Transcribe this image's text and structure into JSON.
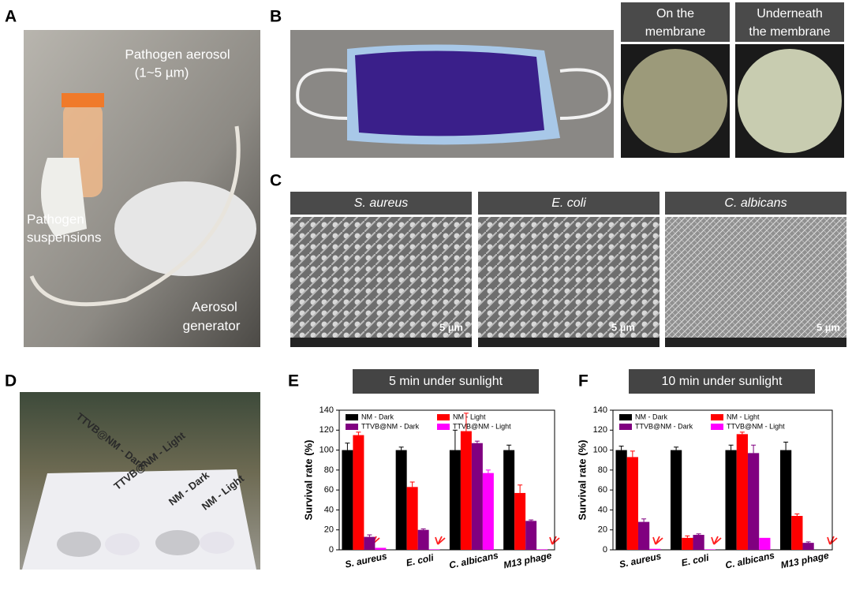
{
  "panels": {
    "a": {
      "letter": "A",
      "aerosol_label": "Pathogen aerosol",
      "size_label": "(1~5 µm)",
      "suspension_label": [
        "Pathogen",
        "suspensions"
      ],
      "generator_label": [
        "Aerosol",
        "generator"
      ]
    },
    "b": {
      "letter": "B",
      "on_label": [
        "On the",
        "membrane"
      ],
      "under_label": [
        "Underneath",
        "the membrane"
      ]
    },
    "c": {
      "letter": "C",
      "headers": [
        "S. aureus",
        "E. coli",
        "C. albicans"
      ],
      "scale_bars": [
        "5 µm",
        "5 µm",
        "5 µm"
      ]
    },
    "d": {
      "letter": "D",
      "card_labels": [
        "TTVB@NM - Dark",
        "TTVB@NM - Light",
        "NM - Dark",
        "NM - Light"
      ]
    },
    "e": {
      "letter": "E"
    },
    "f": {
      "letter": "F"
    }
  },
  "chart_data": [
    {
      "type": "bar",
      "title": "5 min under sunlight",
      "y_label": "Survival rate (%)",
      "categories": [
        "S. aureus",
        "E. coli",
        "C. albicans",
        "M13 phage"
      ],
      "series": [
        {
          "name": "NM - Dark",
          "color": "#000000",
          "values": [
            100,
            100,
            100,
            100
          ],
          "errors": [
            7,
            3,
            20,
            5
          ]
        },
        {
          "name": "NM - Light",
          "color": "#ff0000",
          "values": [
            115,
            63,
            119,
            57
          ],
          "errors": [
            3,
            5,
            18,
            8
          ]
        },
        {
          "name": "TTVB@NM - Dark",
          "color": "#800080",
          "values": [
            13,
            20,
            107,
            29
          ],
          "errors": [
            2,
            1,
            2,
            1
          ]
        },
        {
          "name": "TTVB@NM - Light",
          "color": "#ff00ff",
          "values": [
            2,
            0.5,
            77,
            0.5
          ],
          "errors": [
            0,
            0,
            3,
            0
          ]
        }
      ],
      "ylim": [
        0,
        140
      ],
      "yticks": [
        0,
        20,
        40,
        60,
        80,
        100,
        120,
        140
      ],
      "legend": "top"
    },
    {
      "type": "bar",
      "title": "10 min under sunlight",
      "y_label": "Survival rate (%)",
      "categories": [
        "S. aureus",
        "E. coli",
        "C. albicans",
        "M13 phage"
      ],
      "series": [
        {
          "name": "NM - Dark",
          "color": "#000000",
          "values": [
            100,
            100,
            100,
            100
          ],
          "errors": [
            4,
            3,
            5,
            8
          ]
        },
        {
          "name": "NM - Light",
          "color": "#ff0000",
          "values": [
            93,
            12,
            116,
            34
          ],
          "errors": [
            6,
            2,
            2,
            2
          ]
        },
        {
          "name": "TTVB@NM - Dark",
          "color": "#800080",
          "values": [
            28,
            15,
            97,
            7
          ],
          "errors": [
            3,
            1,
            8,
            1
          ]
        },
        {
          "name": "TTVB@NM - Light",
          "color": "#ff00ff",
          "values": [
            1,
            0.5,
            12,
            0
          ],
          "errors": [
            0,
            0,
            0,
            0
          ]
        }
      ],
      "ylim": [
        0,
        140
      ],
      "yticks": [
        0,
        20,
        40,
        60,
        80,
        100,
        120,
        140
      ],
      "legend": "top"
    }
  ]
}
